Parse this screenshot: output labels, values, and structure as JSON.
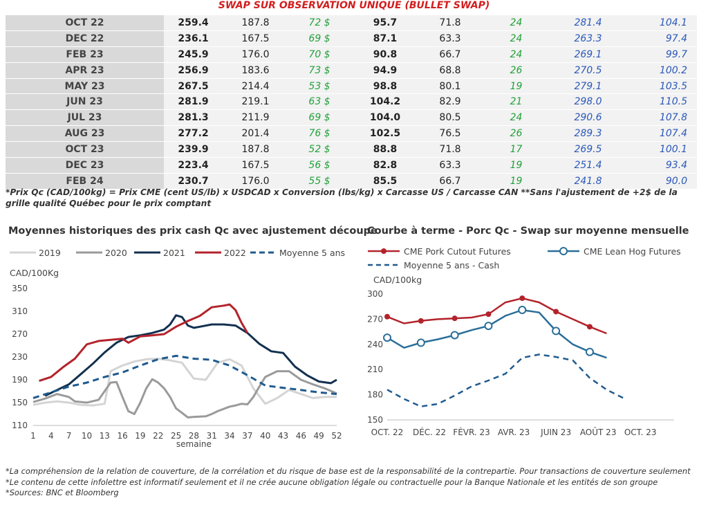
{
  "table": {
    "title": "SWAP SUR OBSERVATION UNIQUE (BULLET SWAP)",
    "rows": [
      [
        "OCT 22",
        "259.4",
        "187.8",
        "72 $",
        "95.7",
        "71.8",
        "24",
        "281.4",
        "104.1"
      ],
      [
        "DEC 22",
        "236.1",
        "167.5",
        "69 $",
        "87.1",
        "63.3",
        "24",
        "263.3",
        "97.4"
      ],
      [
        "FEB 23",
        "245.9",
        "176.0",
        "70 $",
        "90.8",
        "66.7",
        "24",
        "269.1",
        "99.7"
      ],
      [
        "APR 23",
        "256.9",
        "183.6",
        "73 $",
        "94.9",
        "68.8",
        "26",
        "270.5",
        "100.2"
      ],
      [
        "MAY 23",
        "267.5",
        "214.4",
        "53 $",
        "98.8",
        "80.1",
        "19",
        "279.1",
        "103.5"
      ],
      [
        "JUN 23",
        "281.9",
        "219.1",
        "63 $",
        "104.2",
        "82.9",
        "21",
        "298.0",
        "110.5"
      ],
      [
        "JUL 23",
        "281.3",
        "211.9",
        "69 $",
        "104.0",
        "80.5",
        "24",
        "290.6",
        "107.8"
      ],
      [
        "AUG 23",
        "277.2",
        "201.4",
        "76 $",
        "102.5",
        "76.5",
        "26",
        "289.3",
        "107.4"
      ],
      [
        "OCT 23",
        "239.9",
        "187.8",
        "52 $",
        "88.8",
        "71.8",
        "17",
        "269.5",
        "100.1"
      ],
      [
        "DEC 23",
        "223.4",
        "167.5",
        "56 $",
        "82.8",
        "63.3",
        "19",
        "251.4",
        "93.4"
      ],
      [
        "FEB 24",
        "230.7",
        "176.0",
        "55 $",
        "85.5",
        "66.7",
        "19",
        "241.8",
        "90.0"
      ]
    ],
    "note": "*Prix Qc (CAD/100kg) = Prix CME (cent US/lb) x USDCAD x Conversion (lbs/kg) x Carcasse US / Carcasse CAN **Sans l'ajustement de +2$ de la grille qualité Québec pour le prix comptant"
  },
  "colors": {
    "y2019": "#d4d4d4",
    "y2020": "#9a9a9a",
    "y2021": "#13304f",
    "y2022": "#b3232b",
    "avg5": "#1f5a8e",
    "cutout": "#b3232b",
    "leanhog": "#2a6e98"
  },
  "chart_data": [
    {
      "type": "line",
      "title": "Moyennes historiques des prix cash Qc avec ajustement découpe",
      "ylabel": "CAD/100Kg",
      "xlabel": "semaine",
      "ylim": [
        110,
        350
      ],
      "xlim": [
        1,
        52
      ],
      "yticks": [
        110,
        150,
        190,
        230,
        270,
        310,
        350
      ],
      "xticks": [
        1,
        4,
        7,
        10,
        13,
        16,
        19,
        22,
        25,
        28,
        31,
        34,
        37,
        40,
        43,
        46,
        49,
        52
      ],
      "legend": "top",
      "series": [
        {
          "name": "2019",
          "key": "y2019",
          "dash": false,
          "x": [
            1,
            3,
            5,
            7,
            9,
            11,
            13,
            14,
            16,
            18,
            20,
            22,
            24,
            26,
            28,
            30,
            32,
            34,
            36,
            38,
            40,
            42,
            44,
            46,
            48,
            50,
            52
          ],
          "values": [
            146,
            150,
            152,
            150,
            146,
            145,
            148,
            205,
            215,
            222,
            226,
            227,
            224,
            220,
            192,
            190,
            220,
            226,
            215,
            175,
            148,
            158,
            172,
            165,
            158,
            160,
            160
          ]
        },
        {
          "name": "2020",
          "key": "y2020",
          "dash": false,
          "x": [
            1,
            3,
            5,
            7,
            8,
            10,
            12,
            13,
            14,
            15,
            16,
            17,
            18,
            19,
            20,
            21,
            22,
            23,
            24,
            25,
            26,
            27,
            28,
            30,
            31,
            32,
            34,
            35,
            36,
            37,
            38,
            39,
            40,
            42,
            44,
            46,
            48,
            50,
            52
          ],
          "values": [
            151,
            157,
            165,
            160,
            152,
            150,
            155,
            170,
            185,
            186,
            160,
            135,
            130,
            150,
            175,
            191,
            185,
            175,
            160,
            140,
            132,
            124,
            125,
            126,
            130,
            135,
            143,
            145,
            148,
            147,
            160,
            178,
            195,
            205,
            205,
            190,
            182,
            175,
            166
          ]
        },
        {
          "name": "2021",
          "key": "y2021",
          "dash": false,
          "x": [
            3,
            5,
            7,
            9,
            11,
            13,
            15,
            17,
            19,
            21,
            23,
            24,
            25,
            26,
            27,
            28,
            29,
            31,
            33,
            35,
            37,
            39,
            41,
            43,
            45,
            47,
            49,
            51,
            52
          ],
          "values": [
            162,
            172,
            182,
            200,
            218,
            238,
            255,
            265,
            268,
            272,
            278,
            287,
            303,
            300,
            285,
            281,
            283,
            287,
            287,
            285,
            272,
            253,
            240,
            237,
            213,
            198,
            187,
            184,
            190
          ]
        },
        {
          "name": "2022",
          "key": "y2022",
          "dash": false,
          "x": [
            2,
            4,
            6,
            8,
            10,
            12,
            14,
            16,
            17,
            19,
            21,
            23,
            25,
            27,
            29,
            31,
            33,
            34,
            35,
            36,
            37
          ],
          "values": [
            188,
            195,
            212,
            227,
            252,
            258,
            260,
            262,
            255,
            266,
            268,
            270,
            283,
            293,
            302,
            317,
            320,
            322,
            312,
            290,
            272
          ]
        },
        {
          "name": "Moyenne 5 ans",
          "key": "avg5",
          "dash": true,
          "x": [
            1,
            4,
            7,
            10,
            13,
            16,
            19,
            22,
            25,
            28,
            31,
            34,
            37,
            40,
            43,
            46,
            49,
            52
          ],
          "values": [
            158,
            168,
            178,
            185,
            195,
            203,
            215,
            226,
            232,
            227,
            225,
            215,
            198,
            180,
            176,
            172,
            168,
            165
          ]
        }
      ]
    },
    {
      "type": "line",
      "title": "Courbe à terme - Porc Qc - Swap sur moyenne mensuelle",
      "ylabel": "CAD/100kg",
      "ylim": [
        150,
        300
      ],
      "yticks": [
        150,
        180,
        210,
        240,
        270,
        300
      ],
      "categories": [
        "OCT. 22",
        "DÉC. 22",
        "FÉVR. 23",
        "AVR. 23",
        "JUIN 23",
        "AOÛT 23",
        "OCT. 23"
      ],
      "legend": "top",
      "x": [
        0,
        1,
        2,
        3,
        4,
        5,
        6,
        7,
        8,
        9,
        10,
        11,
        12,
        13,
        14,
        15,
        16,
        17
      ],
      "series": [
        {
          "name": "CME Pork Cutout Futures",
          "key": "cutout",
          "dash": false,
          "marker": "filled",
          "values": [
            273,
            265,
            268,
            270,
            271,
            272,
            276,
            290,
            295,
            290,
            279,
            270,
            261,
            253,
            null,
            null,
            null,
            null
          ]
        },
        {
          "name": "CME Lean Hog Futures",
          "key": "leanhog",
          "dash": false,
          "marker": "hollow",
          "values": [
            248,
            236,
            242,
            246,
            251,
            257,
            262,
            274,
            281,
            278,
            256,
            240,
            231,
            224,
            null,
            null,
            null,
            null
          ]
        },
        {
          "name": "Moyenne 5 ans - Cash",
          "key": "avg5",
          "dash": true,
          "marker": "none",
          "values": [
            186,
            175,
            166,
            169,
            179,
            190,
            197,
            205,
            224,
            228,
            225,
            221,
            200,
            186,
            176,
            null,
            null,
            null
          ]
        }
      ]
    }
  ],
  "footnotes": [
    "*La compréhension de la relation de couverture, de la corrélation et du risque de base est de la responsabilité de la contrepartie. Pour transactions de couverture seulement",
    "*Le contenu de cette infolettre est informatif seulement et il ne crée aucune obligation légale ou contractuelle pour la Banque Nationale et les entités de son groupe",
    "*Sources: BNC et Bloomberg"
  ]
}
